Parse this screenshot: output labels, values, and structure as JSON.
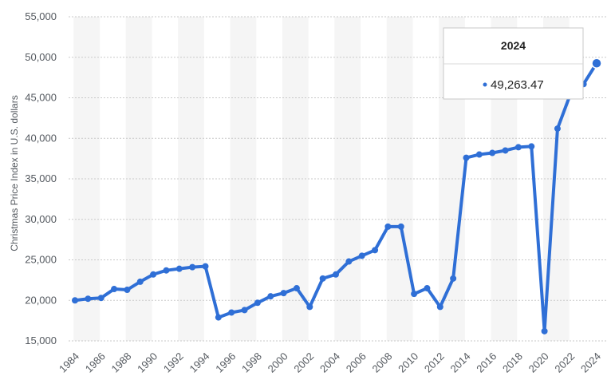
{
  "chart_data": {
    "type": "line",
    "ylabel": "Christmas Price Index in U.S. dollars",
    "xlabel": "",
    "ylim": [
      15000,
      55000
    ],
    "yticks": [
      15000,
      20000,
      25000,
      30000,
      35000,
      40000,
      45000,
      50000,
      55000
    ],
    "ytick_labels": [
      "15,000",
      "20,000",
      "25,000",
      "30,000",
      "35,000",
      "40,000",
      "45,000",
      "50,000",
      "55,000"
    ],
    "xlim": [
      1984,
      2024
    ],
    "xtick_labels": [
      "1984",
      "1986",
      "1988",
      "1990",
      "1992",
      "1994",
      "1996",
      "1998",
      "2000",
      "2002",
      "2004",
      "2006",
      "2008",
      "2010",
      "2012",
      "2014",
      "2016",
      "2018",
      "2020",
      "2022",
      "2024"
    ],
    "grid": true,
    "color": "#2f6fd6",
    "x": [
      1984,
      1985,
      1986,
      1987,
      1988,
      1989,
      1990,
      1991,
      1992,
      1993,
      1994,
      1995,
      1996,
      1997,
      1998,
      1999,
      2000,
      2001,
      2002,
      2003,
      2004,
      2005,
      2006,
      2007,
      2008,
      2009,
      2010,
      2011,
      2012,
      2013,
      2014,
      2015,
      2016,
      2017,
      2018,
      2019,
      2020,
      2021,
      2022,
      2023,
      2024
    ],
    "values": [
      20000,
      20200,
      20300,
      21400,
      21300,
      22300,
      23200,
      23700,
      23900,
      24100,
      24200,
      17900,
      18500,
      18800,
      19700,
      20500,
      20900,
      21500,
      19200,
      22700,
      23200,
      24800,
      25500,
      26200,
      29100,
      29100,
      20800,
      21500,
      19200,
      22700,
      37600,
      38000,
      38200,
      38500,
      38900,
      39000,
      16200,
      41200,
      45500,
      46700,
      49263.47
    ],
    "tooltip": {
      "title": "2024",
      "value": "49,263.47"
    }
  }
}
